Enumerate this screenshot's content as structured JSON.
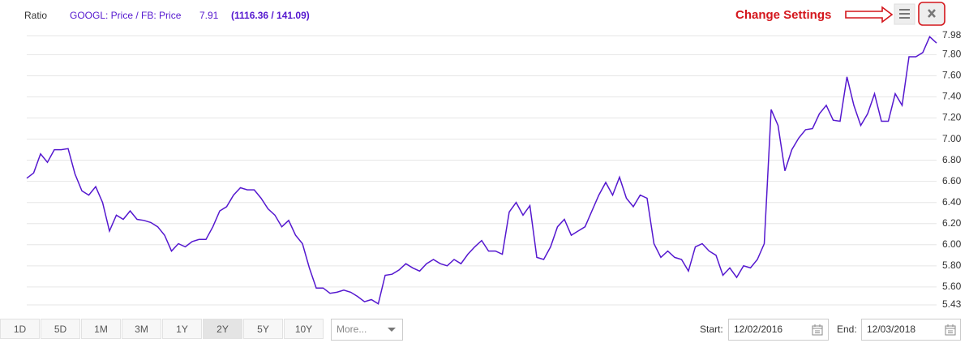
{
  "header": {
    "label": "Ratio",
    "last_value": 7.91,
    "prices": "(1116.36 / 141.09)",
    "annotation": "Change Settings"
  },
  "chart_data": {
    "type": "line",
    "series": [
      {
        "name": "GOOGL: Price / FB: Price",
        "color": "#5518cf",
        "values": [
          6.63,
          6.68,
          6.86,
          6.78,
          6.9,
          6.9,
          6.91,
          6.67,
          6.51,
          6.47,
          6.55,
          6.4,
          6.13,
          6.28,
          6.24,
          6.32,
          6.24,
          6.23,
          6.21,
          6.17,
          6.09,
          5.94,
          6.01,
          5.98,
          6.03,
          6.05,
          6.05,
          6.17,
          6.32,
          6.36,
          6.47,
          6.54,
          6.52,
          6.52,
          6.44,
          6.34,
          6.28,
          6.17,
          6.23,
          6.09,
          6.01,
          5.78,
          5.59,
          5.59,
          5.54,
          5.55,
          5.57,
          5.55,
          5.51,
          5.46,
          5.48,
          5.44,
          5.71,
          5.72,
          5.76,
          5.82,
          5.78,
          5.75,
          5.82,
          5.86,
          5.82,
          5.8,
          5.86,
          5.82,
          5.91,
          5.98,
          6.04,
          5.94,
          5.94,
          5.91,
          6.31,
          6.4,
          6.28,
          6.37,
          5.88,
          5.86,
          5.98,
          6.17,
          6.24,
          6.09,
          6.13,
          6.17,
          6.32,
          6.47,
          6.59,
          6.47,
          6.64,
          6.44,
          6.36,
          6.47,
          6.44,
          6.01,
          5.88,
          5.94,
          5.88,
          5.86,
          5.75,
          5.98,
          6.01,
          5.94,
          5.9,
          5.71,
          5.78,
          5.69,
          5.8,
          5.78,
          5.86,
          6.01,
          7.28,
          7.13,
          6.7,
          6.9,
          7.01,
          7.09,
          7.1,
          7.24,
          7.32,
          7.18,
          7.17,
          7.59,
          7.32,
          7.13,
          7.24,
          7.43,
          7.17,
          7.17,
          7.43,
          7.32,
          7.78,
          7.78,
          7.82,
          7.97,
          7.91
        ]
      }
    ],
    "ylim": [
      5.43,
      7.98
    ],
    "yticks": [
      5.43,
      {
        "value": 5.6,
        "label": "5.60"
      },
      {
        "value": 5.8,
        "label": "5.80"
      },
      {
        "value": 6,
        "label": "6.00"
      },
      {
        "value": 6.2,
        "label": "6.20"
      },
      {
        "value": 6.4,
        "label": "6.40"
      },
      {
        "value": 6.6,
        "label": "6.60"
      },
      {
        "value": 6.8,
        "label": "6.80"
      },
      {
        "value": 7,
        "label": "7.00"
      },
      {
        "value": 7.2,
        "label": "7.20"
      },
      {
        "value": 7.4,
        "label": "7.40"
      },
      {
        "value": 7.6,
        "label": "7.60"
      },
      {
        "value": 7.8,
        "label": "7.80"
      },
      7.98
    ],
    "grid": true
  },
  "controls": {
    "ranges": [
      "1D",
      "5D",
      "1M",
      "3M",
      "1Y",
      "2Y",
      "5Y",
      "10Y"
    ],
    "selected": 5,
    "more": "More...",
    "start_label": "Start:",
    "start": "12/02/2016",
    "end_label": "End:",
    "end": "12/03/2018"
  }
}
